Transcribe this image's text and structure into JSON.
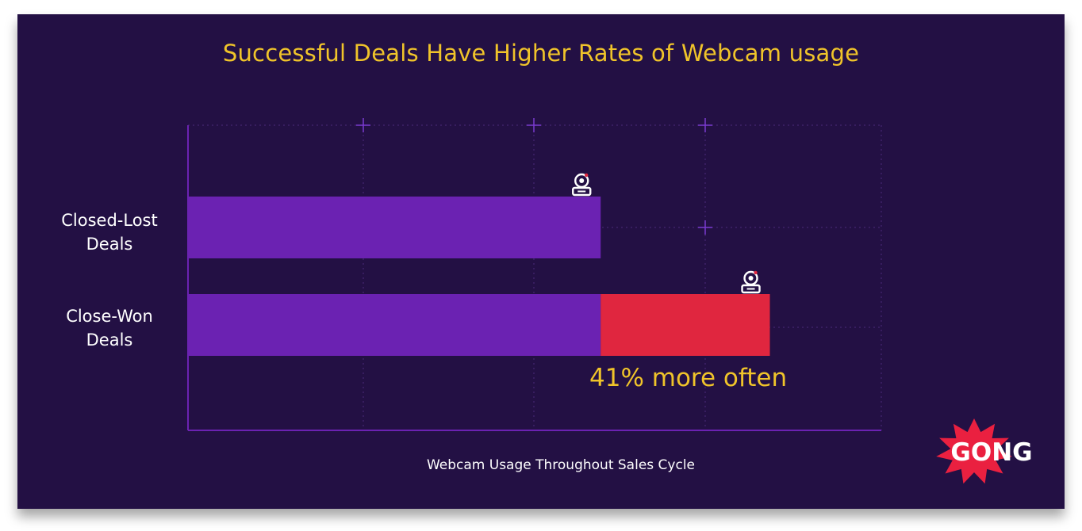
{
  "chart_data": {
    "type": "bar",
    "orientation": "horizontal",
    "title": "Successful Deals Have Higher Rates of Webcam usage",
    "xlabel": "Webcam Usage Throughout Sales Cycle",
    "ylabel": "",
    "categories": [
      [
        "Closed-Lost",
        "Deals"
      ],
      [
        "Close-Won",
        "Deals"
      ]
    ],
    "series": [
      {
        "values": [
          1.0,
          1.0
        ],
        "color": "#6b22b2"
      },
      {
        "values": [
          0,
          0.41
        ],
        "color": "#e0263f"
      }
    ],
    "xlim": [
      0,
      1.68
    ],
    "annotation": "41% more often",
    "grid": true,
    "bar_icon": "webcam-icon"
  },
  "brand": {
    "logo_text": "GONG",
    "logo_color": "#ea2040"
  },
  "colors": {
    "background": "#231044",
    "title": "#f0c42a",
    "text": "#ffffff",
    "axis": "#6b22b2"
  }
}
